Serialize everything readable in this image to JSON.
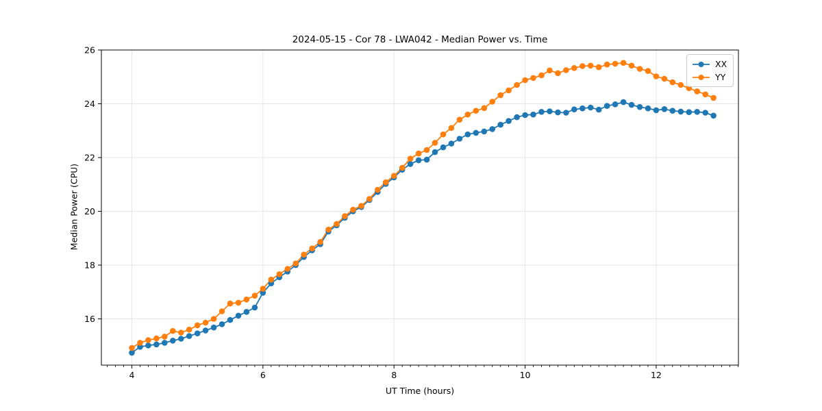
{
  "figure": {
    "title": "2024-05-15 - Cor 78 - LWA042 - Median Power vs. Time",
    "xlabel": "UT Time (hours)",
    "ylabel": "Median Power (CPU)"
  },
  "legend": {
    "position": "upper right",
    "items": [
      {
        "label": "XX",
        "color": "#1f77b4",
        "swatch_icon": "line-with-dot-icon"
      },
      {
        "label": "YY",
        "color": "#ff7f0e",
        "swatch_icon": "line-with-dot-icon"
      }
    ]
  },
  "colors": {
    "series_xx": "#1f77b4",
    "series_yy": "#ff7f0e",
    "grid": "#e4e4e4",
    "spine": "#000000",
    "background": "#ffffff"
  },
  "chart_data": {
    "type": "line",
    "title": "2024-05-15 - Cor 78 - LWA042 - Median Power vs. Time",
    "xlabel": "UT Time (hours)",
    "ylabel": "Median Power (CPU)",
    "xlim": [
      3.535,
      13.255
    ],
    "ylim": [
      14.28,
      26.0
    ],
    "xticks": [
      4,
      6,
      8,
      10,
      12
    ],
    "yticks": [
      16,
      18,
      20,
      22,
      24,
      26
    ],
    "x_minor_step": 0.125,
    "grid": true,
    "legend_position": "upper right",
    "marker": "circle",
    "x": [
      4,
      4.125,
      4.25,
      4.375,
      4.5,
      4.625,
      4.75,
      4.875,
      5,
      5.125,
      5.25,
      5.375,
      5.5,
      5.625,
      5.75,
      5.875,
      6,
      6.125,
      6.25,
      6.375,
      6.5,
      6.625,
      6.75,
      6.875,
      7,
      7.125,
      7.25,
      7.375,
      7.5,
      7.625,
      7.75,
      7.875,
      8,
      8.125,
      8.25,
      8.375,
      8.5,
      8.625,
      8.75,
      8.875,
      9,
      9.125,
      9.25,
      9.375,
      9.5,
      9.625,
      9.75,
      9.875,
      10,
      10.125,
      10.25,
      10.375,
      10.5,
      10.625,
      10.75,
      10.875,
      11,
      11.125,
      11.25,
      11.375,
      11.5,
      11.625,
      11.75,
      11.875,
      12,
      12.125,
      12.25,
      12.375,
      12.5,
      12.625,
      12.75,
      12.875
    ],
    "series": [
      {
        "name": "XX",
        "color": "#1f77b4",
        "values": [
          14.74,
          14.96,
          15.01,
          15.05,
          15.11,
          15.19,
          15.26,
          15.36,
          15.46,
          15.57,
          15.68,
          15.8,
          15.96,
          16.12,
          16.26,
          16.42,
          16.97,
          17.32,
          17.55,
          17.76,
          18.0,
          18.3,
          18.55,
          18.78,
          19.25,
          19.48,
          19.76,
          20.0,
          20.16,
          20.42,
          20.72,
          21.02,
          21.26,
          21.55,
          21.76,
          21.9,
          21.92,
          22.2,
          22.38,
          22.52,
          22.7,
          22.86,
          22.92,
          22.97,
          23.06,
          23.22,
          23.36,
          23.5,
          23.58,
          23.6,
          23.7,
          23.72,
          23.68,
          23.67,
          23.79,
          23.83,
          23.86,
          23.78,
          23.92,
          23.98,
          24.06,
          23.96,
          23.88,
          23.83,
          23.76,
          23.8,
          23.74,
          23.71,
          23.69,
          23.7,
          23.67,
          23.56
        ]
      },
      {
        "name": "YY",
        "color": "#ff7f0e",
        "values": [
          14.92,
          15.11,
          15.21,
          15.27,
          15.34,
          15.55,
          15.49,
          15.6,
          15.76,
          15.86,
          16.0,
          16.28,
          16.57,
          16.6,
          16.72,
          16.86,
          17.12,
          17.46,
          17.66,
          17.86,
          18.06,
          18.39,
          18.62,
          18.86,
          19.32,
          19.53,
          19.82,
          20.06,
          20.2,
          20.46,
          20.8,
          21.08,
          21.32,
          21.62,
          21.96,
          22.15,
          22.28,
          22.55,
          22.86,
          23.1,
          23.41,
          23.6,
          23.74,
          23.84,
          24.08,
          24.32,
          24.5,
          24.7,
          24.88,
          24.96,
          25.06,
          25.24,
          25.14,
          25.25,
          25.33,
          25.4,
          25.42,
          25.36,
          25.46,
          25.49,
          25.52,
          25.42,
          25.3,
          25.22,
          25.02,
          24.93,
          24.8,
          24.7,
          24.58,
          24.46,
          24.35,
          24.22
        ]
      }
    ]
  }
}
